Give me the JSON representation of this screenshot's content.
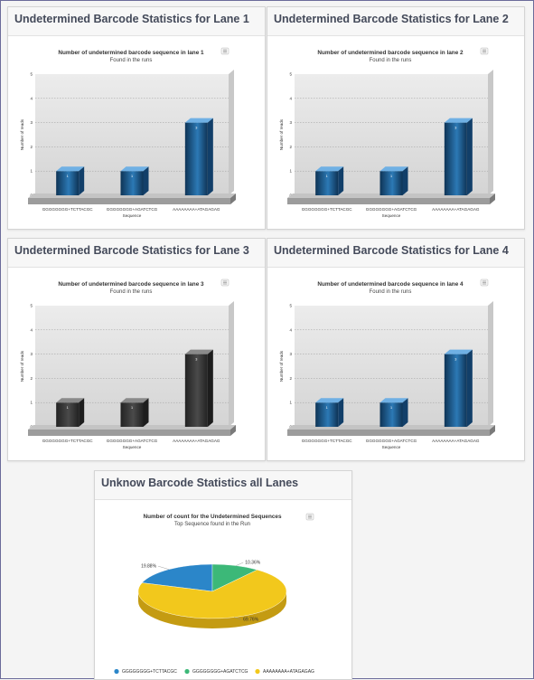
{
  "lanes": [
    {
      "panel_title": "Undetermined Barcode Statistics for Lane 1",
      "chart_data": {
        "type": "bar",
        "title": "Number of undetermined barcode sequence in lane 1",
        "subtitle": "Found in the runs",
        "xlabel": "Sequence",
        "ylabel": "Number of reads",
        "categories": [
          "GGGGGGGG+TCTTACGC",
          "GGGGGGGG+AGATCTCG",
          "AAAAAAAA+ATAGAGAG"
        ],
        "values": [
          1,
          1,
          3
        ],
        "data_labels": [
          "1",
          "1",
          "3"
        ],
        "ylim": [
          0,
          5
        ],
        "yticks": [
          "0",
          "1",
          "2",
          "3",
          "4",
          "5"
        ],
        "grid": true,
        "palette": "blue"
      }
    },
    {
      "panel_title": "Undetermined Barcode Statistics for Lane 2",
      "chart_data": {
        "type": "bar",
        "title": "Number of undetermined barcode sequence in lane 2",
        "subtitle": "Found in the runs",
        "xlabel": "Sequence",
        "ylabel": "Number of reads",
        "categories": [
          "GGGGGGGG+TCTTACGC",
          "GGGGGGGG+AGATCTCG",
          "AAAAAAAA+ATAGAGAG"
        ],
        "values": [
          1,
          1,
          3
        ],
        "data_labels": [
          "1",
          "1",
          "3"
        ],
        "ylim": [
          0,
          5
        ],
        "yticks": [
          "0",
          "1",
          "2",
          "3",
          "4",
          "5"
        ],
        "grid": true,
        "palette": "blue"
      }
    },
    {
      "panel_title": "Undetermined Barcode Statistics for Lane 3",
      "chart_data": {
        "type": "bar",
        "title": "Number of undetermined barcode sequence in lane 3",
        "subtitle": "Found in the runs",
        "xlabel": "Sequence",
        "ylabel": "Number of reads",
        "categories": [
          "GGGGGGGG+TCTTACGC",
          "GGGGGGGG+AGATCTCG",
          "AAAAAAAA+ATAGAGAG"
        ],
        "values": [
          1,
          1,
          3
        ],
        "data_labels": [
          "1",
          "1",
          "3"
        ],
        "ylim": [
          0,
          5
        ],
        "yticks": [
          "0",
          "1",
          "2",
          "3",
          "4",
          "5"
        ],
        "grid": true,
        "palette": "gray"
      }
    },
    {
      "panel_title": "Undetermined Barcode Statistics for Lane 4",
      "chart_data": {
        "type": "bar",
        "title": "Number of undetermined barcode sequence in lane 4",
        "subtitle": "Found in the runs",
        "xlabel": "Sequence",
        "ylabel": "Number of reads",
        "categories": [
          "GGGGGGGG+TCTTACGC",
          "GGGGGGGG+AGATCTCG",
          "AAAAAAAA+ATAGAGAG"
        ],
        "values": [
          1,
          1,
          3
        ],
        "data_labels": [
          "1",
          "1",
          "3"
        ],
        "ylim": [
          0,
          5
        ],
        "yticks": [
          "0",
          "1",
          "2",
          "3",
          "4",
          "5"
        ],
        "grid": true,
        "palette": "blue"
      }
    }
  ],
  "all_lanes": {
    "panel_title": "Unknow Barcode Statistics all Lanes",
    "chart_data": {
      "type": "pie",
      "title": "Number of count for the Undetermined Sequences",
      "subtitle": "Top Sequence found in the Run",
      "categories": [
        "GGGGGGGG+TCTTACGC",
        "GGGGGGGG+AGATCTCG",
        "AAAAAAAA+ATAGAGAG"
      ],
      "values": [
        19.88,
        10.36,
        69.76
      ],
      "value_labels": [
        "19.88%",
        "10.36%",
        "69.76%"
      ],
      "legend_position": "bottom",
      "colors": [
        "#2b86c9",
        "#3cb878",
        "#f2c81c"
      ]
    }
  },
  "icons": {
    "export": "menu-icon"
  }
}
